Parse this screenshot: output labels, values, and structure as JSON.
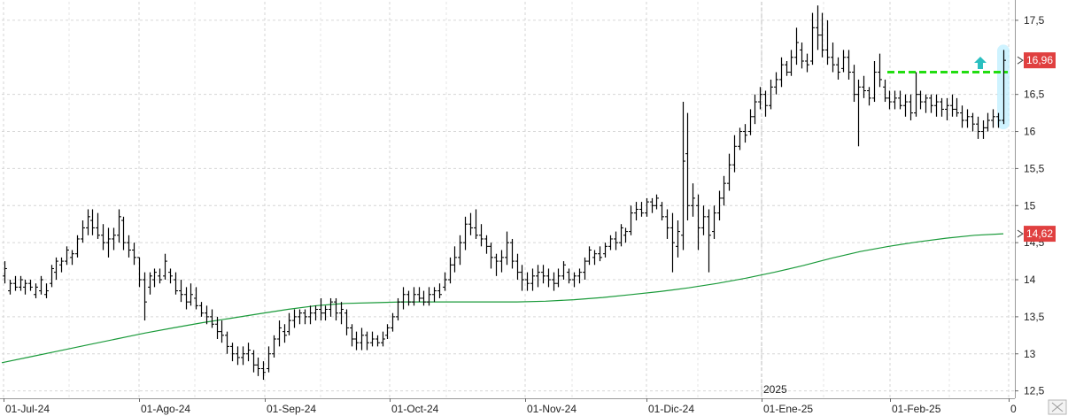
{
  "chart_data": {
    "type": "ohlc-bar",
    "x_tick_labels": [
      "01-Jul-24",
      "01-Ago-24",
      "01-Sep-24",
      "01-Oct-24",
      "01-Nov-24",
      "01-Dic-24",
      "01-Ene-25",
      "01-Feb-25",
      "0"
    ],
    "year_marker": "2025",
    "y_tick_labels": [
      "17,5",
      "16,5",
      "16",
      "15,5",
      "15",
      "14,5",
      "14",
      "13,5",
      "13",
      "12,5"
    ],
    "ylim": [
      12.4,
      17.75
    ],
    "grid": true,
    "colors": {
      "bars": "#000000",
      "moving_average": "#1a9a3a",
      "resistance_line": "#22dd11",
      "price_tag": "#e04040",
      "highlight": "#bfefff",
      "arrow": "#2abfc0"
    },
    "last_price_label": "16,96",
    "last_price_value": 16.96,
    "moving_average_label": "14,62",
    "moving_average_value": 14.62,
    "resistance_level": 16.8,
    "arrow_icon": "up-arrow-icon",
    "moving_average": [
      12.88,
      12.96,
      13.04,
      13.12,
      13.2,
      13.28,
      13.35,
      13.42,
      13.48,
      13.54,
      13.6,
      13.65,
      13.68,
      13.69,
      13.7,
      13.7,
      13.7,
      13.7,
      13.7,
      13.71,
      13.73,
      13.76,
      13.8,
      13.84,
      13.89,
      13.95,
      14.02,
      14.1,
      14.19,
      14.29,
      14.38,
      14.45,
      14.51,
      14.56,
      14.6,
      14.62
    ],
    "bars": [
      {
        "h": 14.25,
        "l": 13.95,
        "o": 14.05,
        "c": 14.15
      },
      {
        "h": 14.0,
        "l": 13.8,
        "o": 13.85,
        "c": 13.95
      },
      {
        "h": 14.05,
        "l": 13.85,
        "o": 13.95,
        "c": 13.9
      },
      {
        "h": 14.05,
        "l": 13.85,
        "o": 13.9,
        "c": 14.0
      },
      {
        "h": 14.0,
        "l": 13.8,
        "o": 13.9,
        "c": 13.95
      },
      {
        "h": 14.0,
        "l": 13.85,
        "o": 13.95,
        "c": 13.9
      },
      {
        "h": 13.95,
        "l": 13.75,
        "o": 13.8,
        "c": 13.9
      },
      {
        "h": 14.05,
        "l": 13.8,
        "o": 13.85,
        "c": 14.0
      },
      {
        "h": 13.95,
        "l": 13.75,
        "o": 13.8,
        "c": 13.85
      },
      {
        "h": 14.2,
        "l": 13.9,
        "o": 13.95,
        "c": 14.15
      },
      {
        "h": 14.3,
        "l": 14.0,
        "o": 14.1,
        "c": 14.25
      },
      {
        "h": 14.3,
        "l": 14.1,
        "o": 14.2,
        "c": 14.25
      },
      {
        "h": 14.45,
        "l": 14.2,
        "o": 14.25,
        "c": 14.4
      },
      {
        "h": 14.4,
        "l": 14.2,
        "o": 14.3,
        "c": 14.35
      },
      {
        "h": 14.6,
        "l": 14.3,
        "o": 14.35,
        "c": 14.55
      },
      {
        "h": 14.8,
        "l": 14.5,
        "o": 14.55,
        "c": 14.7
      },
      {
        "h": 14.95,
        "l": 14.6,
        "o": 14.7,
        "c": 14.85
      },
      {
        "h": 14.95,
        "l": 14.6,
        "o": 14.8,
        "c": 14.7
      },
      {
        "h": 14.9,
        "l": 14.55,
        "o": 14.7,
        "c": 14.6
      },
      {
        "h": 14.75,
        "l": 14.4,
        "o": 14.6,
        "c": 14.5
      },
      {
        "h": 14.7,
        "l": 14.3,
        "o": 14.5,
        "c": 14.55
      },
      {
        "h": 14.7,
        "l": 14.4,
        "o": 14.55,
        "c": 14.6
      },
      {
        "h": 14.95,
        "l": 14.5,
        "o": 14.6,
        "c": 14.85
      },
      {
        "h": 14.85,
        "l": 14.4,
        "o": 14.8,
        "c": 14.5
      },
      {
        "h": 14.6,
        "l": 14.3,
        "o": 14.5,
        "c": 14.4
      },
      {
        "h": 14.5,
        "l": 14.2,
        "o": 14.4,
        "c": 14.3
      },
      {
        "h": 14.3,
        "l": 13.9,
        "o": 14.3,
        "c": 14.0
      },
      {
        "h": 14.1,
        "l": 13.45,
        "o": 14.0,
        "c": 13.7
      },
      {
        "h": 14.1,
        "l": 13.8,
        "o": 13.9,
        "c": 14.05
      },
      {
        "h": 14.15,
        "l": 13.9,
        "o": 14.0,
        "c": 14.1
      },
      {
        "h": 14.15,
        "l": 13.95,
        "o": 14.05,
        "c": 14.0
      },
      {
        "h": 14.35,
        "l": 14.0,
        "o": 14.05,
        "c": 14.25
      },
      {
        "h": 14.15,
        "l": 13.95,
        "o": 14.1,
        "c": 14.05
      },
      {
        "h": 14.1,
        "l": 13.8,
        "o": 14.0,
        "c": 13.85
      },
      {
        "h": 14.0,
        "l": 13.7,
        "o": 13.85,
        "c": 13.8
      },
      {
        "h": 13.9,
        "l": 13.6,
        "o": 13.8,
        "c": 13.7
      },
      {
        "h": 13.95,
        "l": 13.65,
        "o": 13.7,
        "c": 13.8
      },
      {
        "h": 13.9,
        "l": 13.6,
        "o": 13.75,
        "c": 13.65
      },
      {
        "h": 13.7,
        "l": 13.5,
        "o": 13.65,
        "c": 13.55
      },
      {
        "h": 13.65,
        "l": 13.4,
        "o": 13.55,
        "c": 13.5
      },
      {
        "h": 13.6,
        "l": 13.35,
        "o": 13.5,
        "c": 13.4
      },
      {
        "h": 13.5,
        "l": 13.2,
        "o": 13.4,
        "c": 13.3
      },
      {
        "h": 13.45,
        "l": 13.15,
        "o": 13.3,
        "c": 13.25
      },
      {
        "h": 13.3,
        "l": 13.0,
        "o": 13.25,
        "c": 13.1
      },
      {
        "h": 13.15,
        "l": 12.9,
        "o": 13.1,
        "c": 13.0
      },
      {
        "h": 13.1,
        "l": 12.85,
        "o": 13.0,
        "c": 12.95
      },
      {
        "h": 13.1,
        "l": 12.85,
        "o": 12.95,
        "c": 13.0
      },
      {
        "h": 13.15,
        "l": 12.9,
        "o": 13.0,
        "c": 13.05
      },
      {
        "h": 13.05,
        "l": 12.75,
        "o": 13.0,
        "c": 12.85
      },
      {
        "h": 12.95,
        "l": 12.7,
        "o": 12.85,
        "c": 12.8
      },
      {
        "h": 12.9,
        "l": 12.65,
        "o": 12.8,
        "c": 12.75
      },
      {
        "h": 13.1,
        "l": 12.75,
        "o": 12.8,
        "c": 13.0
      },
      {
        "h": 13.25,
        "l": 12.95,
        "o": 13.0,
        "c": 13.2
      },
      {
        "h": 13.45,
        "l": 13.1,
        "o": 13.2,
        "c": 13.35
      },
      {
        "h": 13.4,
        "l": 13.15,
        "o": 13.3,
        "c": 13.25
      },
      {
        "h": 13.55,
        "l": 13.25,
        "o": 13.3,
        "c": 13.45
      },
      {
        "h": 13.6,
        "l": 13.35,
        "o": 13.45,
        "c": 13.5
      },
      {
        "h": 13.6,
        "l": 13.4,
        "o": 13.5,
        "c": 13.55
      },
      {
        "h": 13.6,
        "l": 13.4,
        "o": 13.55,
        "c": 13.5
      },
      {
        "h": 13.65,
        "l": 13.4,
        "o": 13.5,
        "c": 13.55
      },
      {
        "h": 13.65,
        "l": 13.45,
        "o": 13.55,
        "c": 13.6
      },
      {
        "h": 13.75,
        "l": 13.45,
        "o": 13.6,
        "c": 13.55
      },
      {
        "h": 13.65,
        "l": 13.45,
        "o": 13.55,
        "c": 13.6
      },
      {
        "h": 13.75,
        "l": 13.5,
        "o": 13.6,
        "c": 13.7
      },
      {
        "h": 13.75,
        "l": 13.45,
        "o": 13.7,
        "c": 13.55
      },
      {
        "h": 13.7,
        "l": 13.4,
        "o": 13.55,
        "c": 13.6
      },
      {
        "h": 13.6,
        "l": 13.25,
        "o": 13.55,
        "c": 13.35
      },
      {
        "h": 13.4,
        "l": 13.1,
        "o": 13.35,
        "c": 13.2
      },
      {
        "h": 13.3,
        "l": 13.05,
        "o": 13.2,
        "c": 13.15
      },
      {
        "h": 13.35,
        "l": 13.05,
        "o": 13.15,
        "c": 13.25
      },
      {
        "h": 13.3,
        "l": 13.05,
        "o": 13.25,
        "c": 13.15
      },
      {
        "h": 13.3,
        "l": 13.1,
        "o": 13.15,
        "c": 13.2
      },
      {
        "h": 13.25,
        "l": 13.1,
        "o": 13.2,
        "c": 13.15
      },
      {
        "h": 13.3,
        "l": 13.1,
        "o": 13.15,
        "c": 13.2
      },
      {
        "h": 13.4,
        "l": 13.2,
        "o": 13.25,
        "c": 13.35
      },
      {
        "h": 13.55,
        "l": 13.3,
        "o": 13.35,
        "c": 13.5
      },
      {
        "h": 13.75,
        "l": 13.45,
        "o": 13.5,
        "c": 13.7
      },
      {
        "h": 13.9,
        "l": 13.6,
        "o": 13.7,
        "c": 13.8
      },
      {
        "h": 13.85,
        "l": 13.65,
        "o": 13.8,
        "c": 13.7
      },
      {
        "h": 13.9,
        "l": 13.65,
        "o": 13.7,
        "c": 13.8
      },
      {
        "h": 13.9,
        "l": 13.7,
        "o": 13.8,
        "c": 13.75
      },
      {
        "h": 13.85,
        "l": 13.65,
        "o": 13.75,
        "c": 13.7
      },
      {
        "h": 13.9,
        "l": 13.65,
        "o": 13.7,
        "c": 13.8
      },
      {
        "h": 13.9,
        "l": 13.7,
        "o": 13.8,
        "c": 13.85
      },
      {
        "h": 13.95,
        "l": 13.75,
        "o": 13.85,
        "c": 13.8
      },
      {
        "h": 14.1,
        "l": 13.85,
        "o": 13.9,
        "c": 14.0
      },
      {
        "h": 14.3,
        "l": 13.95,
        "o": 14.0,
        "c": 14.2
      },
      {
        "h": 14.45,
        "l": 14.1,
        "o": 14.2,
        "c": 14.3
      },
      {
        "h": 14.6,
        "l": 14.2,
        "o": 14.3,
        "c": 14.5
      },
      {
        "h": 14.85,
        "l": 14.4,
        "o": 14.5,
        "c": 14.75
      },
      {
        "h": 14.9,
        "l": 14.6,
        "o": 14.75,
        "c": 14.7
      },
      {
        "h": 14.95,
        "l": 14.55,
        "o": 14.7,
        "c": 14.6
      },
      {
        "h": 14.75,
        "l": 14.45,
        "o": 14.6,
        "c": 14.55
      },
      {
        "h": 14.6,
        "l": 14.35,
        "o": 14.55,
        "c": 14.45
      },
      {
        "h": 14.5,
        "l": 14.15,
        "o": 14.45,
        "c": 14.3
      },
      {
        "h": 14.35,
        "l": 14.05,
        "o": 14.3,
        "c": 14.25
      },
      {
        "h": 14.4,
        "l": 14.1,
        "o": 14.25,
        "c": 14.3
      },
      {
        "h": 14.65,
        "l": 14.2,
        "o": 14.3,
        "c": 14.5
      },
      {
        "h": 14.55,
        "l": 14.15,
        "o": 14.5,
        "c": 14.25
      },
      {
        "h": 14.35,
        "l": 14.0,
        "o": 14.25,
        "c": 14.1
      },
      {
        "h": 14.2,
        "l": 13.85,
        "o": 14.1,
        "c": 14.0
      },
      {
        "h": 14.1,
        "l": 13.85,
        "o": 14.0,
        "c": 13.95
      },
      {
        "h": 14.15,
        "l": 13.85,
        "o": 13.95,
        "c": 14.05
      },
      {
        "h": 14.2,
        "l": 13.9,
        "o": 14.05,
        "c": 14.1
      },
      {
        "h": 14.2,
        "l": 13.95,
        "o": 14.1,
        "c": 14.05
      },
      {
        "h": 14.15,
        "l": 13.9,
        "o": 14.05,
        "c": 14.0
      },
      {
        "h": 14.1,
        "l": 13.85,
        "o": 14.0,
        "c": 13.95
      },
      {
        "h": 14.15,
        "l": 13.9,
        "o": 13.95,
        "c": 14.05
      },
      {
        "h": 14.25,
        "l": 14.0,
        "o": 14.05,
        "c": 14.2
      },
      {
        "h": 14.15,
        "l": 13.95,
        "o": 14.1,
        "c": 14.0
      },
      {
        "h": 14.1,
        "l": 13.9,
        "o": 14.0,
        "c": 14.05
      },
      {
        "h": 14.15,
        "l": 13.95,
        "o": 14.05,
        "c": 14.1
      },
      {
        "h": 14.3,
        "l": 14.0,
        "o": 14.1,
        "c": 14.25
      },
      {
        "h": 14.45,
        "l": 14.2,
        "o": 14.25,
        "c": 14.4
      },
      {
        "h": 14.4,
        "l": 14.2,
        "o": 14.3,
        "c": 14.35
      },
      {
        "h": 14.45,
        "l": 14.25,
        "o": 14.35,
        "c": 14.3
      },
      {
        "h": 14.5,
        "l": 14.3,
        "o": 14.35,
        "c": 14.45
      },
      {
        "h": 14.6,
        "l": 14.4,
        "o": 14.45,
        "c": 14.55
      },
      {
        "h": 14.65,
        "l": 14.4,
        "o": 14.55,
        "c": 14.5
      },
      {
        "h": 14.75,
        "l": 14.45,
        "o": 14.5,
        "c": 14.7
      },
      {
        "h": 14.7,
        "l": 14.5,
        "o": 14.6,
        "c": 14.65
      },
      {
        "h": 15.0,
        "l": 14.6,
        "o": 14.65,
        "c": 14.9
      },
      {
        "h": 15.05,
        "l": 14.8,
        "o": 14.9,
        "c": 14.95
      },
      {
        "h": 15.05,
        "l": 14.85,
        "o": 14.95,
        "c": 14.9
      },
      {
        "h": 15.1,
        "l": 14.85,
        "o": 14.9,
        "c": 15.05
      },
      {
        "h": 15.1,
        "l": 14.9,
        "o": 15.05,
        "c": 15.0
      },
      {
        "h": 15.15,
        "l": 14.95,
        "o": 15.0,
        "c": 15.1
      },
      {
        "h": 15.05,
        "l": 14.8,
        "o": 15.0,
        "c": 14.85
      },
      {
        "h": 14.95,
        "l": 14.55,
        "o": 14.85,
        "c": 14.7
      },
      {
        "h": 14.9,
        "l": 14.1,
        "o": 14.7,
        "c": 14.5
      },
      {
        "h": 14.8,
        "l": 14.3,
        "o": 14.45,
        "c": 14.65
      },
      {
        "h": 16.4,
        "l": 14.4,
        "o": 14.6,
        "c": 15.6
      },
      {
        "h": 16.25,
        "l": 14.8,
        "o": 15.7,
        "c": 15.0
      },
      {
        "h": 15.3,
        "l": 14.85,
        "o": 15.0,
        "c": 15.1
      },
      {
        "h": 15.15,
        "l": 14.4,
        "o": 15.0,
        "c": 14.7
      },
      {
        "h": 15.0,
        "l": 14.6,
        "o": 14.7,
        "c": 14.85
      },
      {
        "h": 14.95,
        "l": 14.1,
        "o": 14.85,
        "c": 14.6
      },
      {
        "h": 15.0,
        "l": 14.55,
        "o": 14.65,
        "c": 14.9
      },
      {
        "h": 15.2,
        "l": 14.8,
        "o": 14.9,
        "c": 15.1
      },
      {
        "h": 15.4,
        "l": 15.0,
        "o": 15.1,
        "c": 15.3
      },
      {
        "h": 15.7,
        "l": 15.2,
        "o": 15.3,
        "c": 15.55
      },
      {
        "h": 15.95,
        "l": 15.45,
        "o": 15.55,
        "c": 15.8
      },
      {
        "h": 16.05,
        "l": 15.75,
        "o": 15.8,
        "c": 16.0
      },
      {
        "h": 16.1,
        "l": 15.85,
        "o": 16.0,
        "c": 15.95
      },
      {
        "h": 16.3,
        "l": 15.95,
        "o": 16.0,
        "c": 16.2
      },
      {
        "h": 16.5,
        "l": 16.1,
        "o": 16.2,
        "c": 16.4
      },
      {
        "h": 16.6,
        "l": 16.3,
        "o": 16.4,
        "c": 16.5
      },
      {
        "h": 16.55,
        "l": 16.2,
        "o": 16.5,
        "c": 16.35
      },
      {
        "h": 16.7,
        "l": 16.3,
        "o": 16.35,
        "c": 16.6
      },
      {
        "h": 16.8,
        "l": 16.5,
        "o": 16.6,
        "c": 16.7
      },
      {
        "h": 17.0,
        "l": 16.6,
        "o": 16.7,
        "c": 16.9
      },
      {
        "h": 16.95,
        "l": 16.75,
        "o": 16.9,
        "c": 16.8
      },
      {
        "h": 17.1,
        "l": 16.75,
        "o": 16.8,
        "c": 17.0
      },
      {
        "h": 17.4,
        "l": 16.9,
        "o": 17.0,
        "c": 17.2
      },
      {
        "h": 17.2,
        "l": 16.85,
        "o": 17.1,
        "c": 16.95
      },
      {
        "h": 17.05,
        "l": 16.8,
        "o": 16.95,
        "c": 16.9
      },
      {
        "h": 17.6,
        "l": 16.9,
        "o": 16.95,
        "c": 17.4
      },
      {
        "h": 17.7,
        "l": 17.1,
        "o": 17.4,
        "c": 17.3
      },
      {
        "h": 17.6,
        "l": 17.0,
        "o": 17.3,
        "c": 17.1
      },
      {
        "h": 17.5,
        "l": 16.9,
        "o": 17.1,
        "c": 17.0
      },
      {
        "h": 17.2,
        "l": 16.8,
        "o": 17.0,
        "c": 16.9
      },
      {
        "h": 17.0,
        "l": 16.7,
        "o": 16.9,
        "c": 16.8
      },
      {
        "h": 17.1,
        "l": 16.8,
        "o": 16.85,
        "c": 17.0
      },
      {
        "h": 17.1,
        "l": 16.7,
        "o": 17.0,
        "c": 16.8
      },
      {
        "h": 16.9,
        "l": 16.4,
        "o": 16.8,
        "c": 16.5
      },
      {
        "h": 16.7,
        "l": 15.8,
        "o": 16.5,
        "c": 16.6
      },
      {
        "h": 16.75,
        "l": 16.45,
        "o": 16.6,
        "c": 16.55
      },
      {
        "h": 16.6,
        "l": 16.35,
        "o": 16.55,
        "c": 16.45
      },
      {
        "h": 16.95,
        "l": 16.4,
        "o": 16.45,
        "c": 16.8
      },
      {
        "h": 17.05,
        "l": 16.6,
        "o": 16.8,
        "c": 16.7
      },
      {
        "h": 16.7,
        "l": 16.4,
        "o": 16.6,
        "c": 16.45
      },
      {
        "h": 16.55,
        "l": 16.3,
        "o": 16.45,
        "c": 16.4
      },
      {
        "h": 16.55,
        "l": 16.3,
        "o": 16.4,
        "c": 16.45
      },
      {
        "h": 16.55,
        "l": 16.3,
        "o": 16.45,
        "c": 16.35
      },
      {
        "h": 16.5,
        "l": 16.2,
        "o": 16.35,
        "c": 16.4
      },
      {
        "h": 16.5,
        "l": 16.15,
        "o": 16.4,
        "c": 16.25
      },
      {
        "h": 16.8,
        "l": 16.2,
        "o": 16.25,
        "c": 16.5
      },
      {
        "h": 16.55,
        "l": 16.3,
        "o": 16.5,
        "c": 16.4
      },
      {
        "h": 16.5,
        "l": 16.25,
        "o": 16.4,
        "c": 16.45
      },
      {
        "h": 16.5,
        "l": 16.25,
        "o": 16.45,
        "c": 16.35
      },
      {
        "h": 16.5,
        "l": 16.2,
        "o": 16.35,
        "c": 16.4
      },
      {
        "h": 16.45,
        "l": 16.2,
        "o": 16.4,
        "c": 16.3
      },
      {
        "h": 16.45,
        "l": 16.15,
        "o": 16.3,
        "c": 16.35
      },
      {
        "h": 16.5,
        "l": 16.2,
        "o": 16.35,
        "c": 16.3
      },
      {
        "h": 16.45,
        "l": 16.2,
        "o": 16.3,
        "c": 16.25
      },
      {
        "h": 16.35,
        "l": 16.05,
        "o": 16.25,
        "c": 16.15
      },
      {
        "h": 16.3,
        "l": 16.05,
        "o": 16.15,
        "c": 16.2
      },
      {
        "h": 16.25,
        "l": 16.0,
        "o": 16.2,
        "c": 16.1
      },
      {
        "h": 16.2,
        "l": 15.9,
        "o": 16.1,
        "c": 16.0
      },
      {
        "h": 16.15,
        "l": 15.9,
        "o": 16.0,
        "c": 16.05
      },
      {
        "h": 16.25,
        "l": 16.0,
        "o": 16.05,
        "c": 16.15
      },
      {
        "h": 16.3,
        "l": 16.05,
        "o": 16.15,
        "c": 16.2
      },
      {
        "h": 16.25,
        "l": 16.05,
        "o": 16.2,
        "c": 16.15
      },
      {
        "h": 17.1,
        "l": 16.1,
        "o": 16.15,
        "c": 16.96
      }
    ]
  }
}
